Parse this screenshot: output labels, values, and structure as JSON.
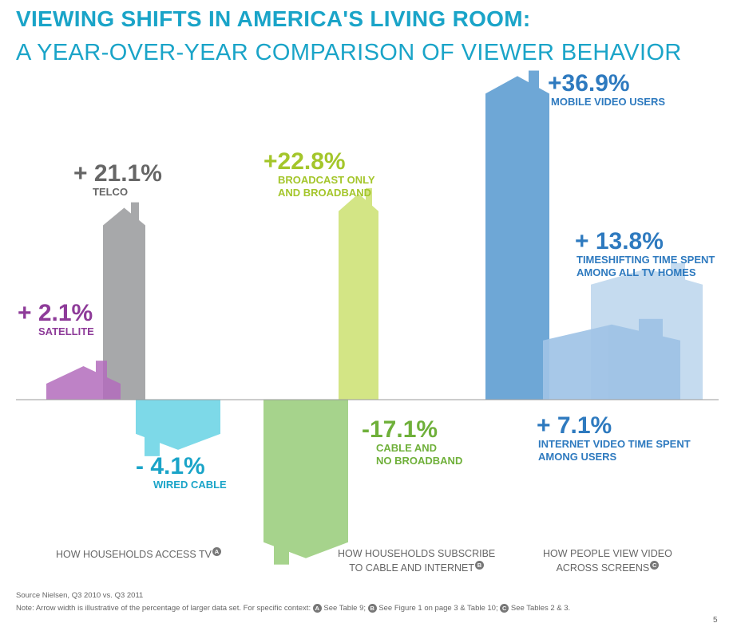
{
  "title": "VIEWING SHIFTS IN AMERICA'S LIVING ROOM:",
  "subtitle": "A YEAR-OVER-YEAR COMPARISON OF VIEWER BEHAVIOR",
  "colors": {
    "title": "#1aa4c8",
    "satellite": "#9b4ea6",
    "telco": "#777777",
    "wired_cable": "#29c2dc",
    "broadcast_broadband": "#b5d431",
    "cable_no_broadband": "#7cb842",
    "mobile_video": "#4a90c6",
    "timeshifting": "#a8c9e6",
    "internet_video": "#2e7abf"
  },
  "chart_data": {
    "type": "bar",
    "unit": "%",
    "series": [
      {
        "key": "satellite",
        "value": 2.1,
        "value_label": "+ 2.1%",
        "label_lines": [
          "SATELLITE"
        ],
        "group": "access"
      },
      {
        "key": "telco",
        "value": 21.1,
        "value_label": "+ 21.1%",
        "label_lines": [
          "TELCO"
        ],
        "group": "access"
      },
      {
        "key": "wired_cable",
        "value": -4.1,
        "value_label": "- 4.1%",
        "label_lines": [
          "WIRED CABLE"
        ],
        "group": "access"
      },
      {
        "key": "cable_no_broadband",
        "value": -17.1,
        "value_label": "-17.1%",
        "label_lines": [
          "CABLE AND",
          "NO BROADBAND"
        ],
        "group": "subscribe"
      },
      {
        "key": "broadcast_broadband",
        "value": 22.8,
        "value_label": "+22.8%",
        "label_lines": [
          "BROADCAST ONLY",
          "AND BROADBAND"
        ],
        "group": "subscribe"
      },
      {
        "key": "mobile_video",
        "value": 36.9,
        "value_label": "+36.9%",
        "label_lines": [
          "MOBILE VIDEO USERS"
        ],
        "group": "screens"
      },
      {
        "key": "timeshifting",
        "value": 13.8,
        "value_label": "+ 13.8%",
        "label_lines": [
          "TIMESHIFTING TIME SPENT",
          "AMONG ALL TV HOMES"
        ],
        "group": "screens"
      },
      {
        "key": "internet_video",
        "value": 7.1,
        "value_label": "+ 7.1%",
        "label_lines": [
          "INTERNET VIDEO TIME SPENT",
          "AMONG USERS"
        ],
        "group": "screens"
      }
    ],
    "groups": [
      {
        "key": "access",
        "lines": [
          "HOW HOUSEHOLDS ACCESS TV"
        ],
        "badge": "A"
      },
      {
        "key": "subscribe",
        "lines": [
          "HOW HOUSEHOLDS SUBSCRIBE",
          "TO CABLE AND INTERNET"
        ],
        "badge": "B"
      },
      {
        "key": "screens",
        "lines": [
          "HOW PEOPLE VIEW VIDEO",
          "ACROSS SCREENS"
        ],
        "badge": "C"
      }
    ]
  },
  "footer": {
    "source": "Source Nielsen, Q3 2010 vs. Q3 2011",
    "note_prefix": "Note: Arrow width is illustrative of the percentage of larger data set. For specific context:",
    "refs": [
      {
        "badge": "A",
        "text": "See Table 9;"
      },
      {
        "badge": "B",
        "text": "See Figure 1 on page 3 & Table 10;"
      },
      {
        "badge": "C",
        "text": "See Tables 2 & 3."
      }
    ],
    "page_number": "5"
  }
}
